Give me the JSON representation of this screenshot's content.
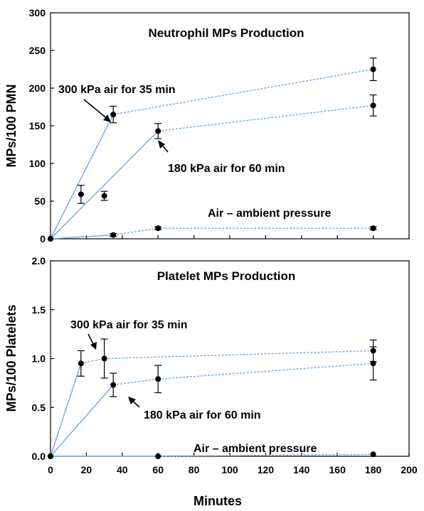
{
  "chart_data": [
    {
      "type": "line",
      "title": "Neutrophil MPs Production",
      "ylabel": "MPs/100 PMN",
      "xlabel": "",
      "xlim": [
        0,
        200
      ],
      "ylim": [
        0,
        300
      ],
      "x_ticks": [],
      "y_ticks": [
        "0",
        "50",
        "100",
        "150",
        "200",
        "250",
        "300"
      ],
      "y_tick_values": [
        0,
        50,
        100,
        150,
        200,
        250,
        300
      ],
      "grid": false,
      "line_color": "#7aa7d6",
      "series": [
        {
          "name": "300 kPa air for 35 min",
          "points": [
            {
              "x": 0,
              "y": 0
            },
            {
              "x": 35,
              "y": 165,
              "err": 11
            },
            {
              "x": 180,
              "y": 225,
              "err": 15
            }
          ]
        },
        {
          "name": "180 kPa air for 60 min",
          "points": [
            {
              "x": 0,
              "y": 0
            },
            {
              "x": 60,
              "y": 143,
              "err": 10
            },
            {
              "x": 180,
              "y": 177,
              "err": 14
            }
          ]
        },
        {
          "name": "Air – ambient pressure",
          "points": [
            {
              "x": 0,
              "y": 0
            },
            {
              "x": 35,
              "y": 5,
              "err": 2
            },
            {
              "x": 60,
              "y": 14,
              "err": 2
            },
            {
              "x": 180,
              "y": 14,
              "err": 2
            }
          ]
        }
      ],
      "extra_points": [
        {
          "x": 17,
          "y": 59,
          "err": 12
        },
        {
          "x": 30,
          "y": 57,
          "err": 6
        }
      ],
      "annotations": [
        {
          "text": "300 kPa air for 35 min",
          "anchor": "300kPa"
        },
        {
          "text": "180 kPa air for 60 min",
          "anchor": "180kPa"
        },
        {
          "text": "Air – ambient pressure",
          "anchor": "ambient"
        }
      ]
    },
    {
      "type": "line",
      "title": "Platelet MPs Production",
      "ylabel": "MPs/100 Platelets",
      "xlabel": "Minutes",
      "xlim": [
        0,
        200
      ],
      "ylim": [
        0,
        2.0
      ],
      "x_ticks": [
        "0",
        "20",
        "40",
        "60",
        "80",
        "100",
        "120",
        "140",
        "160",
        "180",
        "200"
      ],
      "x_tick_values": [
        0,
        20,
        40,
        60,
        80,
        100,
        120,
        140,
        160,
        180,
        200
      ],
      "y_ticks": [
        "0.0",
        "0.5",
        "1.0",
        "1.5",
        "2.0"
      ],
      "y_tick_values": [
        0,
        0.5,
        1.0,
        1.5,
        2.0
      ],
      "grid": false,
      "line_color": "#7aa7d6",
      "series": [
        {
          "name": "300 kPa air for 35 min",
          "points": [
            {
              "x": 0,
              "y": 0
            },
            {
              "x": 17,
              "y": 0.95,
              "err": 0.13
            },
            {
              "x": 30,
              "y": 1.0,
              "err": 0.2
            },
            {
              "x": 180,
              "y": 1.08,
              "err": 0.11
            }
          ]
        },
        {
          "name": "180 kPa air for 60 min",
          "points": [
            {
              "x": 0,
              "y": 0
            },
            {
              "x": 35,
              "y": 0.73,
              "err": 0.12
            },
            {
              "x": 60,
              "y": 0.79,
              "err": 0.14
            },
            {
              "x": 180,
              "y": 0.95,
              "err": 0.17
            }
          ]
        },
        {
          "name": "Air – ambient pressure",
          "points": [
            {
              "x": 0,
              "y": 0
            },
            {
              "x": 60,
              "y": 0.0
            },
            {
              "x": 180,
              "y": 0.02
            }
          ]
        }
      ],
      "extra_points": [],
      "annotations": [
        {
          "text": "300 kPa air for 35 min",
          "anchor": "300kPa"
        },
        {
          "text": "180 kPa air for 60 min",
          "anchor": "180kPa"
        },
        {
          "text": "Air – ambient pressure",
          "anchor": "ambient"
        }
      ]
    }
  ]
}
